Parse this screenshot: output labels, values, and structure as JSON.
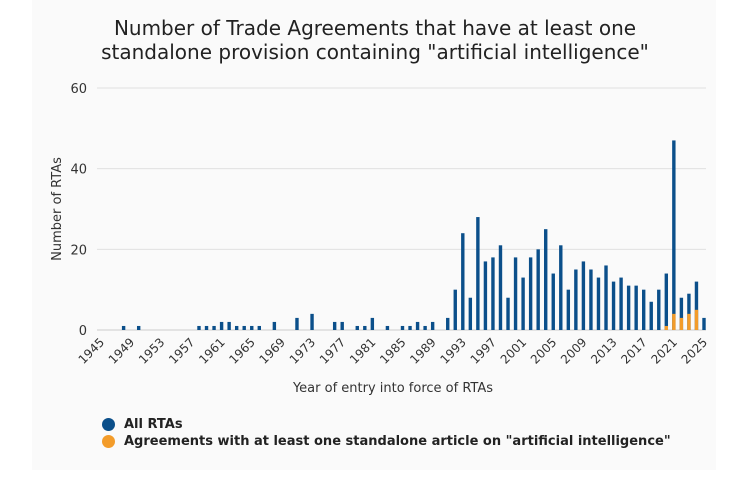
{
  "colors": {
    "all_rtas": "#0b4f8a",
    "ai_agreements": "#f39c2a",
    "grid": "#e0e0e0"
  },
  "chart_data": {
    "type": "bar",
    "title": "Number of Trade Agreements that have at least one standalone provision containing \"artificial intelligence\"",
    "title_lines": [
      "Number of Trade Agreements that have at least one",
      "standalone provision containing \"artificial intelligence\""
    ],
    "xlabel": "Year of entry into force of RTAs",
    "ylabel": "Number of RTAs",
    "ylim": [
      0,
      60
    ],
    "yticks": [
      0,
      20,
      40,
      60
    ],
    "xlim": [
      1945,
      2025
    ],
    "xticks": [
      1945,
      1949,
      1953,
      1957,
      1961,
      1965,
      1969,
      1973,
      1977,
      1981,
      1985,
      1989,
      1993,
      1997,
      2001,
      2005,
      2009,
      2013,
      2017,
      2021,
      2025
    ],
    "series": [
      {
        "name": "All RTAs",
        "points": [
          [
            1948,
            1
          ],
          [
            1950,
            1
          ],
          [
            1958,
            1
          ],
          [
            1959,
            1
          ],
          [
            1960,
            1
          ],
          [
            1961,
            2
          ],
          [
            1962,
            2
          ],
          [
            1963,
            1
          ],
          [
            1964,
            1
          ],
          [
            1965,
            1
          ],
          [
            1966,
            1
          ],
          [
            1968,
            2
          ],
          [
            1971,
            3
          ],
          [
            1973,
            4
          ],
          [
            1976,
            2
          ],
          [
            1977,
            2
          ],
          [
            1979,
            1
          ],
          [
            1980,
            1
          ],
          [
            1981,
            3
          ],
          [
            1983,
            1
          ],
          [
            1985,
            1
          ],
          [
            1986,
            1
          ],
          [
            1987,
            2
          ],
          [
            1988,
            1
          ],
          [
            1989,
            2
          ],
          [
            1991,
            3
          ],
          [
            1992,
            10
          ],
          [
            1993,
            24
          ],
          [
            1994,
            8
          ],
          [
            1995,
            28
          ],
          [
            1996,
            17
          ],
          [
            1997,
            18
          ],
          [
            1998,
            21
          ],
          [
            1999,
            8
          ],
          [
            2000,
            18
          ],
          [
            2001,
            13
          ],
          [
            2002,
            18
          ],
          [
            2003,
            20
          ],
          [
            2004,
            25
          ],
          [
            2005,
            14
          ],
          [
            2006,
            21
          ],
          [
            2007,
            10
          ],
          [
            2008,
            15
          ],
          [
            2009,
            17
          ],
          [
            2010,
            15
          ],
          [
            2011,
            13
          ],
          [
            2012,
            16
          ],
          [
            2013,
            12
          ],
          [
            2014,
            13
          ],
          [
            2015,
            11
          ],
          [
            2016,
            11
          ],
          [
            2017,
            10
          ],
          [
            2018,
            7
          ],
          [
            2019,
            10
          ],
          [
            2020,
            14
          ],
          [
            2021,
            47
          ],
          [
            2022,
            8
          ],
          [
            2023,
            9
          ],
          [
            2024,
            12
          ],
          [
            2025,
            3
          ]
        ]
      },
      {
        "name": "Agreements with at least one standalone article on \"artificial intelligence\"",
        "points": [
          [
            2020,
            1
          ],
          [
            2021,
            4
          ],
          [
            2022,
            3
          ],
          [
            2023,
            4
          ],
          [
            2024,
            5
          ]
        ]
      }
    ],
    "legend": [
      "All RTAs",
      "Agreements with at least one standalone article on \"artificial intelligence\""
    ]
  }
}
